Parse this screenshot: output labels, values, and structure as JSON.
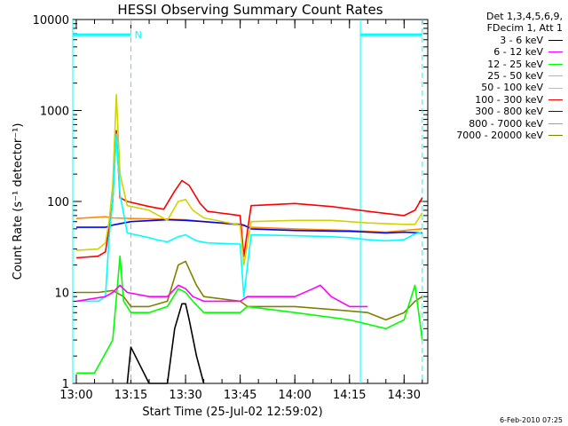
{
  "chart_data": {
    "type": "line",
    "title": "HESSI Observing Summary Count Rates",
    "xlabel": "Start Time (25-Jul-02 12:59:02)",
    "ylabel": "Count Rate (s⁻¹ detector⁻¹)",
    "y_scale": "log",
    "ylim": [
      1,
      10000
    ],
    "xlim": [
      "12:59:02",
      "14:36:30"
    ],
    "x_ticks": [
      "13:00",
      "13:15",
      "13:30",
      "13:45",
      "14:00",
      "14:15",
      "14:30"
    ],
    "y_ticks": [
      "1",
      "10",
      "100",
      "1000",
      "10000"
    ],
    "grid": false,
    "legend_header": [
      "Det 1,3,4,5,6,9,",
      "FDecim 1, Att 1"
    ],
    "annotations": [
      {
        "text": "N",
        "x": "13:16",
        "y": 6800,
        "color": "#00ffff"
      }
    ],
    "markers": {
      "cyan_segments": [
        {
          "x": [
            "12:59:02",
            "13:15"
          ],
          "y": 6800
        },
        {
          "x": [
            "14:18",
            "14:35"
          ],
          "y": 6800
        }
      ],
      "vlines_solid": [
        "12:59:02",
        "14:18"
      ],
      "vlines_dashed": [
        "13:15",
        "14:35"
      ]
    },
    "series": [
      {
        "name": "3 - 6 keV",
        "color": "#000000",
        "x": [
          "13:14",
          "13:15",
          "13:20",
          "13:25",
          "13:27",
          "13:29",
          "13:30",
          "13:31",
          "13:33",
          "13:35"
        ],
        "y": [
          1,
          2.5,
          1,
          1,
          4,
          7.5,
          7.5,
          5,
          2,
          1
        ]
      },
      {
        "name": "6 - 12 keV",
        "color": "#ff00ff",
        "x": [
          "13:00",
          "13:08",
          "13:10",
          "13:12",
          "13:14",
          "13:20",
          "13:25",
          "13:28",
          "13:30",
          "13:32",
          "13:35",
          "13:45",
          "13:47",
          "14:00",
          "14:05",
          "14:07",
          "14:10",
          "14:15",
          "14:20"
        ],
        "y": [
          8,
          9,
          10,
          12,
          10,
          9,
          9,
          12,
          11,
          9,
          8,
          8,
          9,
          9,
          11,
          12,
          9,
          7,
          7
        ]
      },
      {
        "name": "12 - 25 keV",
        "color": "#00ff00",
        "x": [
          "13:00",
          "13:05",
          "13:10",
          "13:12",
          "13:13",
          "13:15",
          "13:20",
          "13:25",
          "13:28",
          "13:30",
          "13:32",
          "13:35",
          "13:45",
          "13:47",
          "14:00",
          "14:15",
          "14:25",
          "14:30",
          "14:33",
          "14:35"
        ],
        "y": [
          1.3,
          1.3,
          3,
          25,
          8,
          6,
          6,
          7,
          11,
          10,
          8,
          6,
          6,
          7,
          6,
          5,
          4,
          5,
          12,
          3
        ]
      },
      {
        "name": "25 - 50 keV",
        "color": "#00ffff",
        "x": [
          "13:00",
          "13:06",
          "13:08",
          "13:09",
          "13:10",
          "13:11",
          "13:12",
          "13:14",
          "13:20",
          "13:22",
          "13:25",
          "13:28",
          "13:30",
          "13:33",
          "13:36",
          "13:45",
          "13:46",
          "13:48",
          "14:00",
          "14:10",
          "14:15",
          "14:20",
          "14:25",
          "14:30",
          "14:33",
          "14:35"
        ],
        "y": [
          8,
          8,
          9,
          40,
          100,
          550,
          120,
          45,
          40,
          38,
          36,
          41,
          43,
          37,
          35,
          34,
          9,
          43,
          42,
          41,
          40,
          38,
          37,
          38,
          44,
          46
        ]
      },
      {
        "name": "50 - 100 keV",
        "color": "#d2d200",
        "x": [
          "13:00",
          "13:06",
          "13:08",
          "13:09",
          "13:10",
          "13:11",
          "13:12",
          "13:14",
          "13:20",
          "13:22",
          "13:25",
          "13:28",
          "13:30",
          "13:32",
          "13:35",
          "13:45",
          "13:46",
          "13:48",
          "14:00",
          "14:10",
          "14:20",
          "14:30",
          "14:33",
          "14:35"
        ],
        "y": [
          29,
          30,
          35,
          60,
          150,
          1500,
          200,
          90,
          80,
          72,
          62,
          100,
          105,
          80,
          66,
          55,
          20,
          60,
          62,
          62,
          58,
          56,
          56,
          75
        ]
      },
      {
        "name": "100 - 300 keV",
        "color": "#ff0000",
        "x": [
          "13:00",
          "13:06",
          "13:08",
          "13:09",
          "13:10",
          "13:11",
          "13:12",
          "13:14",
          "13:20",
          "13:24",
          "13:27",
          "13:29",
          "13:31",
          "13:34",
          "13:36",
          "13:45",
          "13:46",
          "13:48",
          "14:00",
          "14:10",
          "14:20",
          "14:30",
          "14:33",
          "14:35"
        ],
        "y": [
          24,
          25,
          28,
          50,
          100,
          600,
          110,
          100,
          88,
          82,
          130,
          170,
          150,
          95,
          78,
          70,
          25,
          90,
          95,
          88,
          78,
          70,
          80,
          110
        ]
      },
      {
        "name": "300 - 800 keV",
        "color": "#0000ff",
        "x": [
          "13:00",
          "13:08",
          "13:10",
          "13:15",
          "13:25",
          "13:30",
          "13:35",
          "13:45",
          "13:46",
          "13:48",
          "14:00",
          "14:15",
          "14:25",
          "14:30",
          "14:35"
        ],
        "y": [
          52,
          52,
          55,
          60,
          63,
          62,
          60,
          56,
          55,
          50,
          48,
          47,
          45,
          46,
          45
        ]
      },
      {
        "name": "800 - 7000 keV",
        "color": "#ff8c00",
        "x": [
          "13:00",
          "13:08",
          "13:10",
          "13:15",
          "13:25",
          "13:30",
          "13:35",
          "13:45",
          "13:48",
          "14:00",
          "14:15",
          "14:25",
          "14:30",
          "14:35"
        ],
        "y": [
          65,
          68,
          66,
          65,
          64,
          63,
          60,
          55,
          52,
          50,
          48,
          46,
          48,
          50
        ]
      },
      {
        "name": "7000 - 20000 keV",
        "color": "#808000",
        "x": [
          "13:00",
          "13:06",
          "13:10",
          "13:13",
          "13:15",
          "13:20",
          "13:25",
          "13:28",
          "13:30",
          "13:33",
          "13:35",
          "13:45",
          "13:47",
          "14:00",
          "14:10",
          "14:20",
          "14:25",
          "14:30",
          "14:33",
          "14:35"
        ],
        "y": [
          10,
          10,
          10.5,
          9,
          7,
          7,
          8,
          20,
          22,
          12,
          9,
          8,
          7,
          7,
          6.5,
          6,
          5,
          6,
          8,
          9
        ]
      }
    ]
  },
  "footer": {
    "timestamp": "6-Feb-2010 07:25"
  }
}
